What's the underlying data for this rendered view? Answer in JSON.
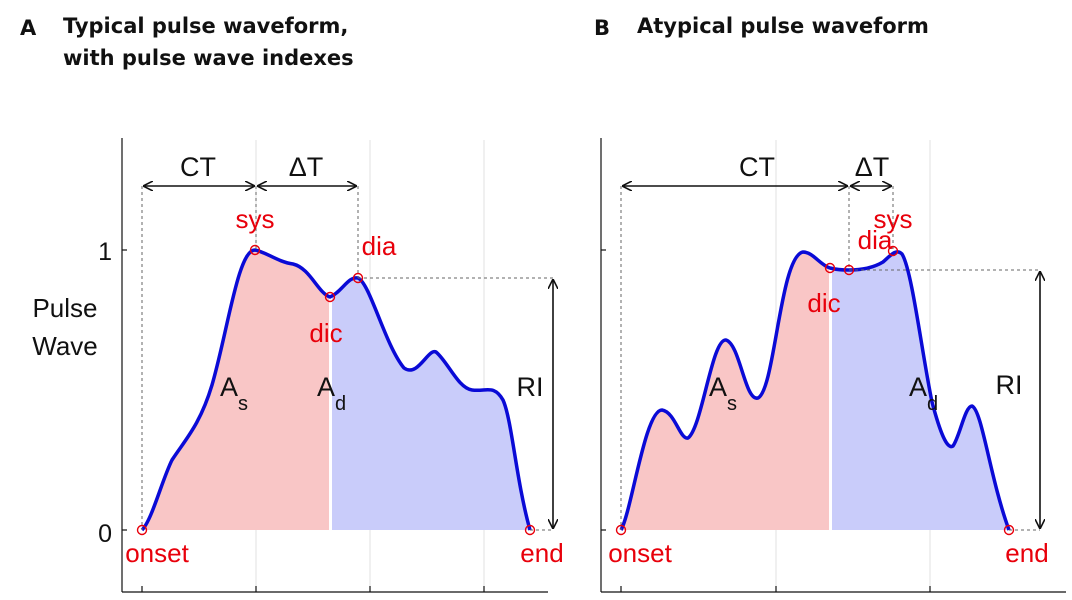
{
  "panels": [
    {
      "letter": "A",
      "title_lines": [
        "Typical pulse waveform,",
        "with pulse wave indexes"
      ],
      "labels": {
        "ct": "CT",
        "delta_t": "ΔT",
        "sys": "sys",
        "dia": "dia",
        "dic": "dic",
        "onset": "onset",
        "end": "end",
        "as_main": "A",
        "as_sub": "s",
        "ad_main": "A",
        "ad_sub": "d",
        "ri": "RI"
      }
    },
    {
      "letter": "B",
      "title_lines": [
        "Atypical pulse waveform"
      ],
      "labels": {
        "ct": "CT",
        "delta_t": "ΔT",
        "sys": "sys",
        "dia": "dia",
        "dic": "dic",
        "onset": "onset",
        "end": "end",
        "as_main": "A",
        "as_sub": "s",
        "ad_main": "A",
        "ad_sub": "d",
        "ri": "RI"
      }
    }
  ],
  "axis": {
    "ylabel_lines": [
      "Pulse",
      "Wave"
    ],
    "yticks": [
      "1",
      "0"
    ]
  },
  "colors": {
    "curve": "#0a0ad6",
    "area_systolic": "#f9c6c6",
    "area_diastolic": "#c9ccfa",
    "annotation": "#e8000b",
    "axis": "#111111"
  }
}
